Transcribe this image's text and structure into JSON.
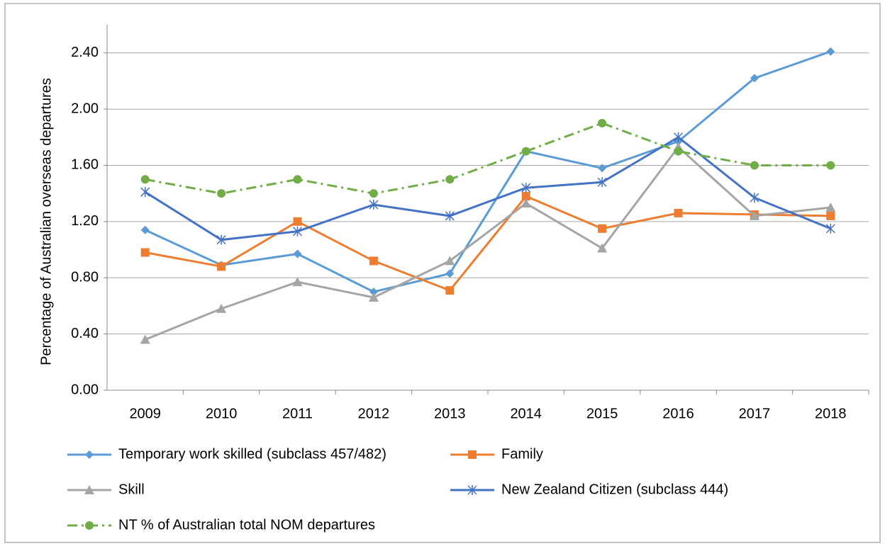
{
  "chart_data": {
    "type": "line",
    "y_label": "Percentage of Australian overseas departures",
    "categories": [
      "2009",
      "2010",
      "2011",
      "2012",
      "2013",
      "2014",
      "2015",
      "2016",
      "2017",
      "2018"
    ],
    "series": [
      {
        "name": "Temporary work skilled (subclass 457/482)",
        "color": "#5b9bd5",
        "marker": "diamond",
        "line_style": "solid",
        "values": [
          1.14,
          0.89,
          0.97,
          0.7,
          0.83,
          1.7,
          1.58,
          1.77,
          2.22,
          2.41
        ]
      },
      {
        "name": "Family",
        "color": "#ed7d31",
        "marker": "square",
        "line_style": "solid",
        "values": [
          0.98,
          0.88,
          1.2,
          0.92,
          0.71,
          1.38,
          1.15,
          1.26,
          1.25,
          1.24
        ]
      },
      {
        "name": "Skill",
        "color": "#a5a5a5",
        "marker": "triangle",
        "line_style": "solid",
        "values": [
          0.36,
          0.58,
          0.77,
          0.66,
          0.92,
          1.33,
          1.01,
          1.73,
          1.24,
          1.3
        ]
      },
      {
        "name": "New Zealand Citizen (subclass 444)",
        "color": "#4472c4",
        "marker": "star",
        "line_style": "solid",
        "values": [
          1.41,
          1.07,
          1.13,
          1.32,
          1.24,
          1.44,
          1.48,
          1.8,
          1.37,
          1.15
        ]
      },
      {
        "name": "NT % of Australian total NOM departures",
        "color": "#70ad47",
        "marker": "circle",
        "line_style": "dashdot",
        "values": [
          1.5,
          1.4,
          1.5,
          1.4,
          1.5,
          1.7,
          1.9,
          1.7,
          1.6,
          1.6
        ]
      }
    ],
    "ylim": [
      0,
      2.6
    ],
    "yticks": [
      {
        "value": 0,
        "label": "0.00"
      },
      {
        "value": 0.4,
        "label": "0.40"
      },
      {
        "value": 0.8,
        "label": "0.80"
      },
      {
        "value": 1.2,
        "label": "1.20"
      },
      {
        "value": 1.6,
        "label": "1.60"
      },
      {
        "value": 2,
        "label": "2.00"
      },
      {
        "value": 2.4,
        "label": "2.40"
      }
    ],
    "grid": true,
    "legend": "bottom"
  }
}
